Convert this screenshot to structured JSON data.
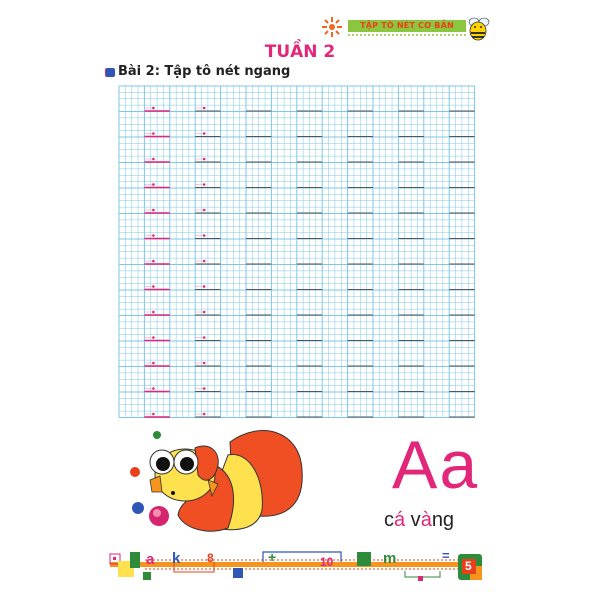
{
  "header": {
    "banner": "TẬP TÔ NÉT CƠ BẢN",
    "week": "TUẦN 2"
  },
  "lesson": {
    "title": "Bài 2: Tập tô nét ngang"
  },
  "worksheet": {
    "rows": 13,
    "columns": 14,
    "trace_color": "#e2277a",
    "grid_color": "#7fc7e6"
  },
  "illustration": {
    "big_letter": "Aa",
    "word_parts": [
      "c",
      "á",
      " v",
      "à",
      "ng"
    ]
  },
  "footer_strip": {
    "letters": [
      "a",
      "k",
      "8",
      "+",
      "10",
      "m",
      "=",
      "5"
    ]
  },
  "colors": {
    "accent": "#e2277a",
    "orange": "#f7941d",
    "green": "#2e8b3a",
    "blue": "#2f57b5"
  }
}
